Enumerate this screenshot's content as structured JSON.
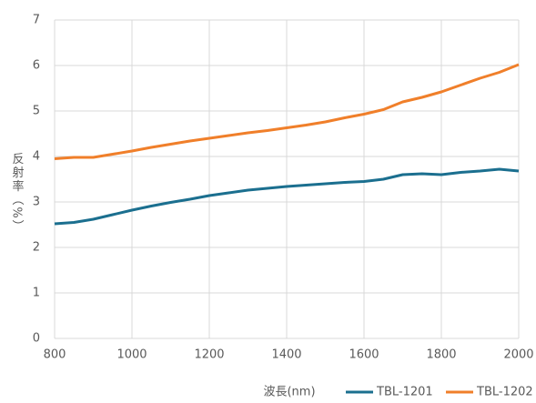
{
  "chart_data": {
    "type": "line",
    "x_label": "波長(nm)",
    "y_label": "反射率（%）",
    "x": [
      800,
      850,
      900,
      950,
      1000,
      1050,
      1100,
      1150,
      1200,
      1250,
      1300,
      1350,
      1400,
      1450,
      1500,
      1550,
      1600,
      1650,
      1700,
      1750,
      1800,
      1850,
      1900,
      1950,
      2000
    ],
    "series": [
      {
        "name": "TBL-1201",
        "color": "#1b6f8f",
        "values": [
          2.52,
          2.55,
          2.62,
          2.72,
          2.82,
          2.91,
          2.99,
          3.06,
          3.14,
          3.2,
          3.26,
          3.3,
          3.34,
          3.37,
          3.4,
          3.43,
          3.45,
          3.5,
          3.6,
          3.62,
          3.6,
          3.65,
          3.68,
          3.72,
          3.68
        ]
      },
      {
        "name": "TBL-1202",
        "color": "#f07f2a",
        "values": [
          3.95,
          3.98,
          3.98,
          4.05,
          4.12,
          4.2,
          4.27,
          4.34,
          4.4,
          4.46,
          4.52,
          4.57,
          4.63,
          4.69,
          4.76,
          4.85,
          4.93,
          5.03,
          5.2,
          5.3,
          5.42,
          5.57,
          5.72,
          5.85,
          6.02
        ]
      }
    ],
    "xlim": [
      800,
      2000
    ],
    "xticks": [
      800,
      1000,
      1200,
      1400,
      1600,
      1800,
      2000
    ],
    "ylim": [
      0,
      7
    ],
    "yticks": [
      0,
      1,
      2,
      3,
      4,
      5,
      6,
      7
    ],
    "grid": true
  }
}
